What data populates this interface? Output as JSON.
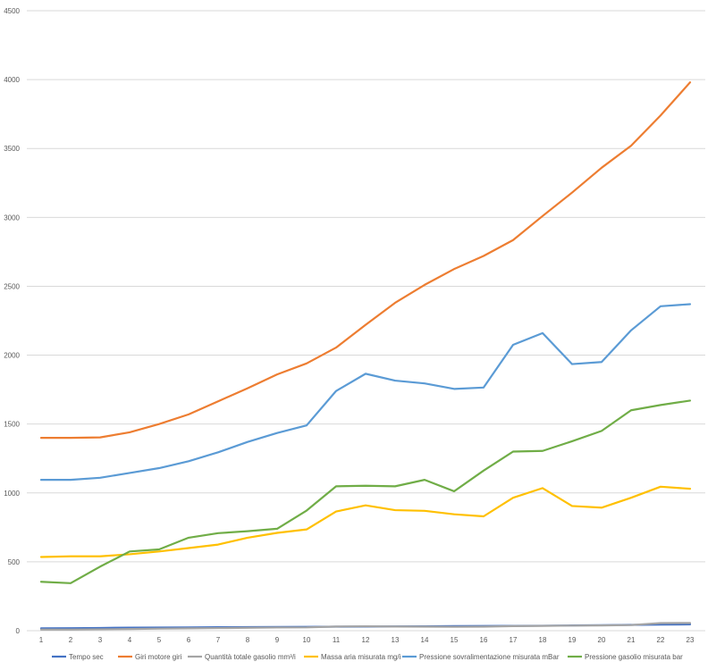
{
  "chart_data": {
    "type": "line",
    "title": "",
    "xlabel": "",
    "ylabel": "",
    "ylim": [
      0,
      4500
    ],
    "grid": true,
    "legend_position": "bottom",
    "y_ticks": [
      "0",
      "500",
      "1000",
      "1500",
      "2000",
      "2500",
      "3000",
      "3500",
      "4000",
      "4500"
    ],
    "categories": [
      "1",
      "2",
      "3",
      "4",
      "5",
      "6",
      "7",
      "8",
      "9",
      "10",
      "11",
      "12",
      "13",
      "14",
      "15",
      "16",
      "17",
      "18",
      "19",
      "20",
      "21",
      "22",
      "23"
    ],
    "series": [
      {
        "name": "Tempo sec",
        "color": "#4472c4",
        "values": [
          17,
          18,
          20,
          22,
          23,
          24,
          25,
          26,
          27,
          28,
          29,
          30,
          31,
          32,
          33,
          34,
          35,
          36,
          38,
          40,
          42,
          44,
          46
        ]
      },
      {
        "name": "Giri motore giri",
        "color": "#ed7d31",
        "values": [
          1400,
          1400,
          1403,
          1440,
          1500,
          1570,
          1665,
          1760,
          1860,
          1940,
          2055,
          2220,
          2380,
          2510,
          2625,
          2720,
          2835,
          3010,
          3180,
          3360,
          3520,
          3740,
          3980
        ]
      },
      {
        "name": "Quantità totale gasolio mm³/i",
        "color": "#a5a5a5",
        "values": [
          8,
          8,
          10,
          12,
          15,
          17,
          19,
          21,
          23,
          24,
          30,
          32,
          30,
          29,
          28,
          29,
          33,
          35,
          37,
          38,
          41,
          55,
          56
        ]
      },
      {
        "name": "Massa aria misurata mg/i",
        "color": "#ffc000",
        "values": [
          535,
          540,
          540,
          555,
          575,
          600,
          625,
          675,
          710,
          735,
          865,
          910,
          875,
          870,
          845,
          830,
          965,
          1035,
          905,
          893,
          965,
          1045,
          1030
        ]
      },
      {
        "name": "Pressione sovralimentazione misurata mBar",
        "color": "#5b9bd5",
        "values": [
          1095,
          1095,
          1110,
          1145,
          1180,
          1230,
          1295,
          1370,
          1435,
          1490,
          1740,
          1865,
          1815,
          1795,
          1755,
          1765,
          2075,
          2160,
          1935,
          1950,
          2180,
          2355,
          2370
        ]
      },
      {
        "name": "Pressione gasolio misurata bar",
        "color": "#70ad47",
        "values": [
          355,
          345,
          465,
          575,
          590,
          675,
          708,
          722,
          740,
          872,
          1048,
          1052,
          1048,
          1095,
          1012,
          1162,
          1300,
          1305,
          1375,
          1450,
          1600,
          1638,
          1670
        ]
      }
    ]
  }
}
